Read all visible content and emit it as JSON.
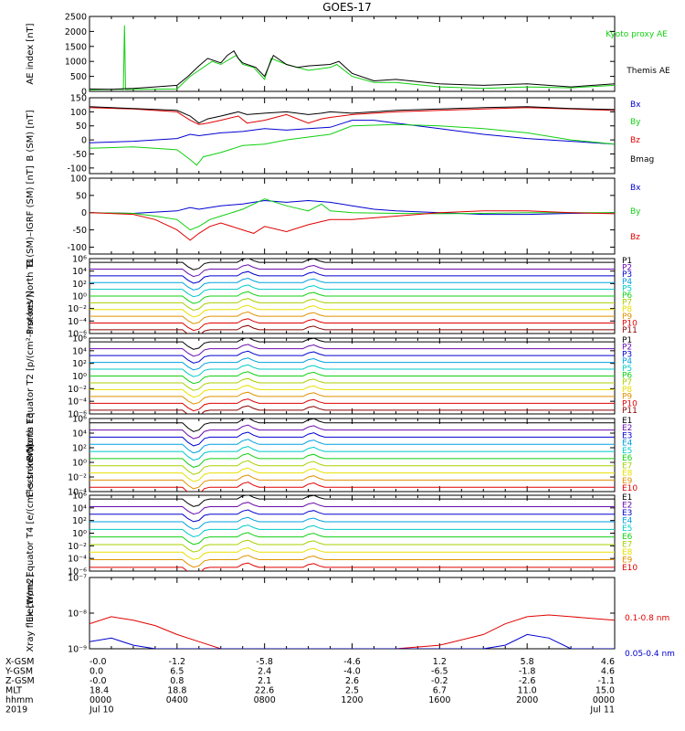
{
  "title": "GOES-17",
  "colors": {
    "black": "#000000",
    "red": "#e00000",
    "green": "#10d010",
    "blue": "#0000d0"
  },
  "chart_data": [
    {
      "type": "line",
      "id": "ae",
      "ylabel": "AE index [nT]",
      "ylim": [
        0,
        2500
      ],
      "yticks": [
        "0",
        "500",
        "1000",
        "1500",
        "2000",
        "2500"
      ],
      "yticks_values": [
        0,
        500,
        1000,
        1500,
        2000,
        2500
      ],
      "series": [
        {
          "name": "Kyoto proxy AE",
          "color": "#10d010",
          "x": [
            0,
            0.5,
            1.4,
            1.55,
            1.6,
            1.65,
            2.2,
            4,
            4.6,
            5,
            5.6,
            6,
            6.7,
            7,
            7.5,
            8,
            8.3,
            9,
            10,
            11,
            11.3,
            12,
            13,
            14,
            16,
            18,
            20,
            22,
            24
          ],
          "y": [
            50,
            60,
            70,
            60,
            2200,
            60,
            70,
            80,
            500,
            700,
            1000,
            900,
            1200,
            900,
            800,
            400,
            1100,
            900,
            700,
            800,
            900,
            500,
            300,
            300,
            150,
            100,
            150,
            120,
            200
          ]
        },
        {
          "name": "Themis AE",
          "color": "#000000",
          "x": [
            0,
            1,
            2,
            3,
            4,
            4.5,
            5,
            5.4,
            6,
            6.3,
            6.6,
            6.8,
            7,
            7.6,
            8,
            8.4,
            9,
            9.5,
            10,
            11,
            11.4,
            12,
            13,
            14,
            16,
            18,
            20,
            22,
            24
          ],
          "y": [
            80,
            70,
            100,
            150,
            200,
            500,
            850,
            1100,
            950,
            1200,
            1350,
            1100,
            950,
            800,
            500,
            1200,
            900,
            800,
            850,
            900,
            1000,
            600,
            350,
            400,
            250,
            200,
            250,
            150,
            250
          ]
        }
      ],
      "legend": [
        "Kyoto proxy AE",
        "Themis AE"
      ]
    },
    {
      "type": "line",
      "id": "b",
      "ylabel": "B (SM) [nT]",
      "ylim": [
        -120,
        150
      ],
      "yticks": [
        "-100",
        "-50",
        "0",
        "50",
        "100",
        "150"
      ],
      "yticks_values": [
        -100,
        -50,
        0,
        50,
        100,
        150
      ],
      "series": [
        {
          "name": "Bx",
          "color": "#0000d0",
          "x": [
            0,
            2,
            4,
            4.6,
            5,
            6,
            7,
            8,
            9,
            10,
            11,
            12,
            13,
            14,
            16,
            18,
            20,
            22,
            24
          ],
          "y": [
            -10,
            -5,
            5,
            20,
            15,
            25,
            30,
            40,
            35,
            40,
            45,
            70,
            70,
            60,
            40,
            20,
            5,
            -5,
            -15
          ]
        },
        {
          "name": "By",
          "color": "#10d010",
          "x": [
            0,
            2,
            4,
            4.6,
            4.9,
            5.2,
            6,
            7,
            8,
            9,
            10,
            11,
            12,
            14,
            16,
            18,
            20,
            22,
            24
          ],
          "y": [
            -30,
            -25,
            -35,
            -70,
            -90,
            -60,
            -45,
            -20,
            -15,
            0,
            10,
            20,
            50,
            55,
            50,
            40,
            25,
            0,
            -15
          ]
        },
        {
          "name": "Bz",
          "color": "#e00000",
          "x": [
            0,
            2,
            4,
            4.6,
            5,
            5.4,
            6,
            6.8,
            7.2,
            8,
            9,
            10,
            10.6,
            11,
            12,
            13,
            14,
            16,
            18,
            20,
            22,
            24
          ],
          "y": [
            115,
            110,
            100,
            70,
            55,
            60,
            70,
            85,
            60,
            70,
            90,
            60,
            75,
            80,
            90,
            95,
            100,
            105,
            110,
            115,
            110,
            105
          ]
        },
        {
          "name": "Bmag",
          "color": "#000000",
          "x": [
            0,
            2,
            4,
            4.6,
            5,
            5.4,
            6,
            6.8,
            7.2,
            8,
            9,
            10,
            10.6,
            11,
            12,
            13,
            14,
            16,
            18,
            20,
            22,
            24
          ],
          "y": [
            118,
            112,
            105,
            85,
            60,
            75,
            85,
            100,
            90,
            95,
            100,
            90,
            95,
            100,
            95,
            100,
            105,
            110,
            115,
            118,
            112,
            108
          ]
        }
      ],
      "legend": [
        "Bx",
        "By",
        "Bz",
        "Bmag"
      ]
    },
    {
      "type": "line",
      "id": "bigrf",
      "ylabel": "B (SM)–IGRF (SM) [nT]",
      "ylim": [
        -120,
        100
      ],
      "yticks": [
        "-100",
        "-50",
        "0",
        "50",
        "100"
      ],
      "yticks_values": [
        -100,
        -50,
        0,
        50,
        100
      ],
      "series": [
        {
          "name": "Bx",
          "color": "#0000d0",
          "x": [
            0,
            2,
            4,
            4.6,
            5,
            6,
            7,
            8,
            9,
            10,
            11,
            12,
            13,
            14,
            16,
            18,
            20,
            22,
            24
          ],
          "y": [
            0,
            -2,
            5,
            15,
            10,
            20,
            25,
            35,
            30,
            35,
            30,
            20,
            10,
            5,
            0,
            -5,
            -5,
            -2,
            0
          ]
        },
        {
          "name": "By",
          "color": "#10d010",
          "x": [
            0,
            2,
            3,
            4,
            4.6,
            5,
            5.5,
            6,
            7,
            8,
            9,
            10,
            10.6,
            11,
            12,
            14,
            16,
            18,
            20,
            22,
            24
          ],
          "y": [
            0,
            -2,
            -10,
            -20,
            -50,
            -40,
            -20,
            -10,
            10,
            40,
            20,
            5,
            25,
            5,
            0,
            -2,
            -3,
            -2,
            0,
            0,
            0
          ]
        },
        {
          "name": "Bz",
          "color": "#e00000",
          "x": [
            0,
            2,
            3,
            4,
            4.6,
            5,
            5.5,
            6,
            7,
            7.5,
            8,
            9,
            10,
            11,
            12,
            13,
            14,
            16,
            18,
            20,
            22,
            24
          ],
          "y": [
            0,
            -5,
            -20,
            -50,
            -80,
            -60,
            -40,
            -30,
            -50,
            -60,
            -40,
            -55,
            -35,
            -20,
            -20,
            -15,
            -10,
            0,
            5,
            5,
            0,
            -3
          ]
        }
      ],
      "legend": [
        "Bx",
        "By",
        "Bz"
      ]
    },
    {
      "type": "line",
      "id": "p1",
      "ylabel": "Protons North T1",
      "ylog": true,
      "yticks": [
        "10⁻⁶",
        "10⁻⁴",
        "10⁻²",
        "10⁰",
        "10²",
        "10⁴",
        "10⁶"
      ],
      "yticks_values": [
        -6,
        -4,
        -2,
        0,
        2,
        4,
        6
      ],
      "legend": [
        "P1",
        "P2",
        "P3",
        "P4",
        "P5",
        "P6",
        "P7",
        "P8",
        "P9",
        "P10",
        "P11"
      ],
      "legend_colors": [
        "#000000",
        "#6a0dad",
        "#0000d0",
        "#00a0e0",
        "#00c8c8",
        "#10d010",
        "#a8d000",
        "#e8e000",
        "#e09000",
        "#e00000",
        "#8b0000"
      ]
    },
    {
      "type": "line",
      "id": "p2",
      "ylabel": "Protons Equator T2 [p/(cm²-s-sr-keV)]",
      "ylog": true,
      "yticks": [
        "10⁻⁶",
        "10⁻⁴",
        "10⁻²",
        "10⁰",
        "10²",
        "10⁴",
        "10⁶"
      ],
      "yticks_values": [
        -6,
        -4,
        -2,
        0,
        2,
        4,
        6
      ],
      "legend": [
        "P1",
        "P2",
        "P3",
        "P4",
        "P5",
        "P6",
        "P7",
        "P8",
        "P9",
        "P10",
        "P11"
      ],
      "legend_colors": [
        "#000000",
        "#6a0dad",
        "#0000d0",
        "#00a0e0",
        "#00c8c8",
        "#10d010",
        "#a8d000",
        "#e8e000",
        "#e09000",
        "#e00000",
        "#8b0000"
      ]
    },
    {
      "type": "line",
      "id": "e1",
      "ylabel": "Electrons North T3",
      "ylog": true,
      "yticks": [
        "10⁻⁴",
        "10⁻²",
        "10⁰",
        "10²",
        "10⁴",
        "10⁶"
      ],
      "yticks_values": [
        -4,
        -2,
        0,
        2,
        4,
        6
      ],
      "legend": [
        "E1",
        "E2",
        "E3",
        "E4",
        "E5",
        "E6",
        "E7",
        "E8",
        "E9",
        "E10"
      ],
      "legend_colors": [
        "#000000",
        "#6a0dad",
        "#0000d0",
        "#00a0e0",
        "#00c8c8",
        "#10d010",
        "#a8d000",
        "#e8e000",
        "#e09000",
        "#e00000"
      ]
    },
    {
      "type": "line",
      "id": "e2",
      "ylabel": "Electrons Equator T4 [e/(cm²-s-sr-keV)]",
      "ylog": true,
      "yticks": [
        "10⁻⁶",
        "10⁻⁴",
        "10⁻²",
        "10⁰",
        "10²",
        "10⁴",
        "10⁶"
      ],
      "yticks_values": [
        -6,
        -4,
        -2,
        0,
        2,
        4,
        6
      ],
      "legend": [
        "E1",
        "E2",
        "E3",
        "E4",
        "E5",
        "E6",
        "E7",
        "E8",
        "E9",
        "E10"
      ],
      "legend_colors": [
        "#000000",
        "#6a0dad",
        "#0000d0",
        "#00a0e0",
        "#00c8c8",
        "#10d010",
        "#a8d000",
        "#e8e000",
        "#e09000",
        "#e00000"
      ]
    },
    {
      "type": "line",
      "id": "xray",
      "ylabel": "Xray flux [W/m2]",
      "ylog": true,
      "yticks": [
        "10⁻⁹",
        "10⁻⁸",
        "10⁻⁷"
      ],
      "yticks_values": [
        -9,
        -8,
        -7
      ],
      "series": [
        {
          "name": "0.1-0.8 nm",
          "color": "#e00000",
          "x": [
            0,
            1,
            2,
            3,
            4,
            5,
            6,
            8,
            10,
            12,
            14,
            16,
            18,
            19,
            20,
            21,
            22,
            23,
            24
          ],
          "y": [
            -8.3,
            -8.1,
            -8.2,
            -8.35,
            -8.6,
            -8.8,
            -9,
            -9,
            -9,
            -9,
            -9,
            -8.9,
            -8.6,
            -8.3,
            -8.1,
            -8.05,
            -8.1,
            -8.15,
            -8.2
          ]
        },
        {
          "name": "0.05-0.4 nm",
          "color": "#0000d0",
          "x": [
            0,
            1,
            2,
            3,
            4,
            18,
            19,
            20,
            21,
            22,
            24
          ],
          "y": [
            -8.8,
            -8.7,
            -8.9,
            -9,
            -9,
            -9,
            -8.9,
            -8.6,
            -8.7,
            -9,
            -9
          ]
        }
      ],
      "legend": [
        "0.1-0.8 nm",
        "0.05-0.4 nm"
      ]
    }
  ],
  "xaxis": {
    "row_labels": [
      "X-GSM",
      "Y-GSM",
      "Z-GSM",
      "MLT",
      "hhmm",
      "2019"
    ],
    "columns": [
      [
        "-0.0",
        "0.0",
        "-0.0",
        "18.4",
        "0000",
        "Jul 10"
      ],
      [
        "-1.2",
        "6.5",
        "0.8",
        "18.8",
        "0400",
        ""
      ],
      [
        "-5.8",
        "2.4",
        "2.1",
        "22.6",
        "0800",
        ""
      ],
      [
        "-4.6",
        "-4.0",
        "2.6",
        "2.5",
        "1200",
        ""
      ],
      [
        "1.2",
        "-6.5",
        "-0.2",
        "6.7",
        "1600",
        ""
      ],
      [
        "5.8",
        "-1.8",
        "-2.6",
        "11.0",
        "2000",
        ""
      ],
      [
        "4.6",
        "4.6",
        "-1.1",
        "15.0",
        "0000",
        "Jul 11"
      ]
    ],
    "range_hours": [
      0,
      24
    ]
  }
}
